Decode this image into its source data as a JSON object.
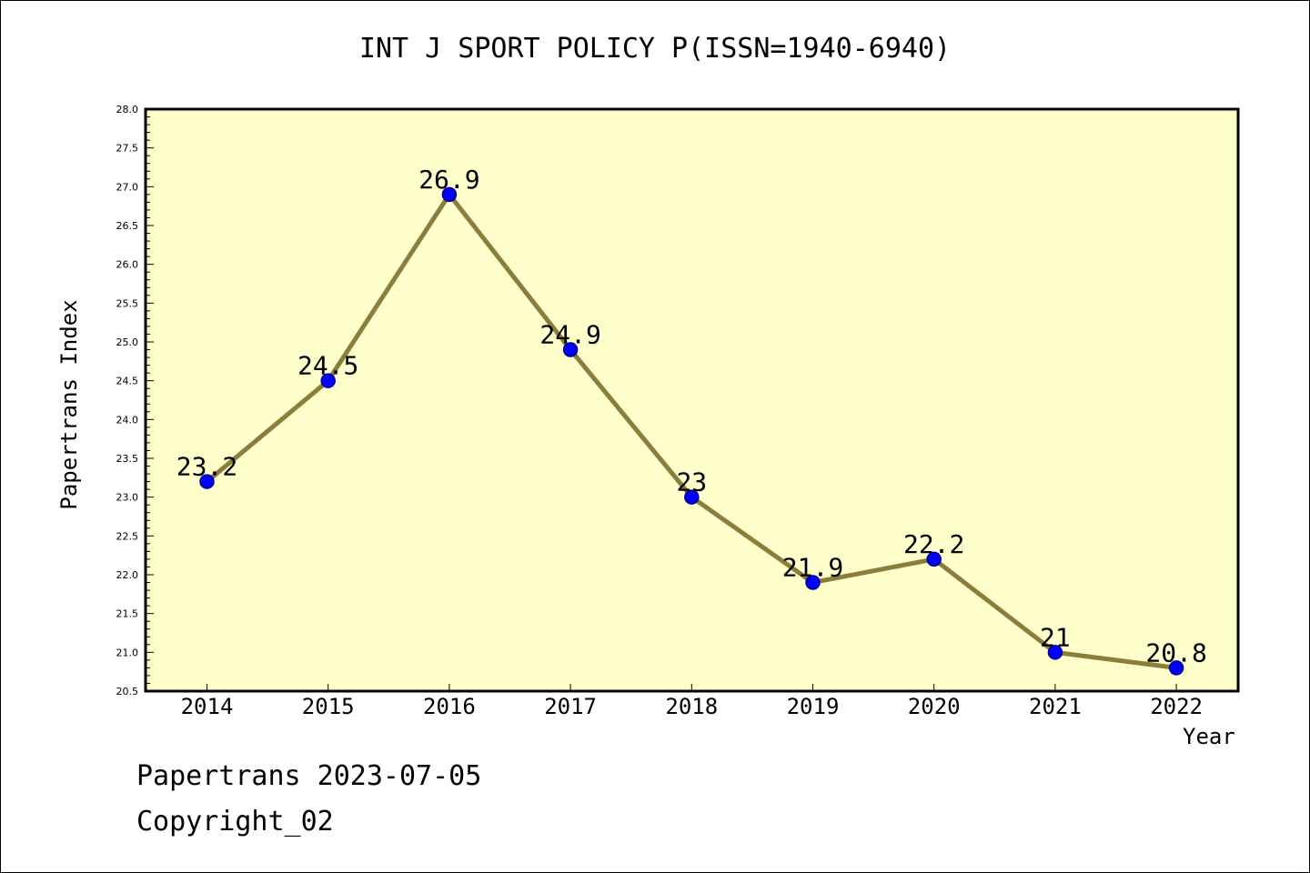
{
  "chart_data": {
    "type": "line",
    "title": "INT J SPORT POLICY P(ISSN=1940-6940)",
    "xlabel": "Year",
    "ylabel": "Papertrans Index",
    "categories": [
      "2014",
      "2015",
      "2016",
      "2017",
      "2018",
      "2019",
      "2020",
      "2021",
      "2022"
    ],
    "series": [
      {
        "values": [
          23.2,
          24.5,
          26.9,
          24.9,
          23.0,
          21.9,
          22.2,
          21.0,
          20.8
        ],
        "data_labels": [
          "23.2",
          "24.5",
          "26.9",
          "24.9",
          "23",
          "21.9",
          "22.2",
          "21",
          "20.8"
        ]
      }
    ],
    "ylim": [
      20.5,
      28.0
    ],
    "yticks": [
      "20.5",
      "21.0",
      "21.5",
      "22.0",
      "22.5",
      "23.0",
      "23.5",
      "24.0",
      "24.5",
      "25.0",
      "25.5",
      "26.0",
      "26.5",
      "27.0",
      "27.5",
      "28.0"
    ],
    "grid": false,
    "colors": {
      "plot_background": "#ffffcc",
      "line": "#8b7d3a",
      "marker": "#0000ff",
      "marker_edge": "#00008b"
    }
  },
  "footer": {
    "date_text": "Papertrans 2023-07-05",
    "copyright_text": "Copyright_02"
  }
}
